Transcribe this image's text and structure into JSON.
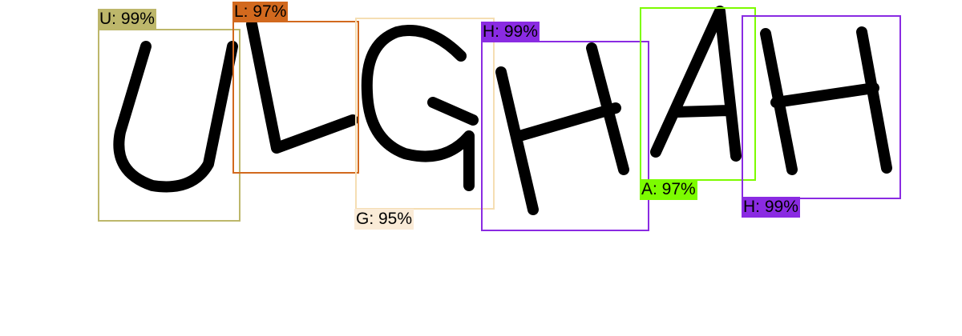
{
  "detections": [
    {
      "text": "U: 99%",
      "color": "#bdb76b",
      "fill": "#bdb76b"
    },
    {
      "text": "L: 97%",
      "color": "#d2691e",
      "fill": "#d2691e"
    },
    {
      "text": "G: 95%",
      "color": "#f5deb3",
      "fill": "#faebd7"
    },
    {
      "text": "H: 99%",
      "color": "#8a2be2",
      "fill": "#8a2be2"
    },
    {
      "text": "A: 97%",
      "color": "#7cfc00",
      "fill": "#7cfc00"
    },
    {
      "text": "H: 99%",
      "color": "#8a2be2",
      "fill": "#8a2be2"
    }
  ]
}
